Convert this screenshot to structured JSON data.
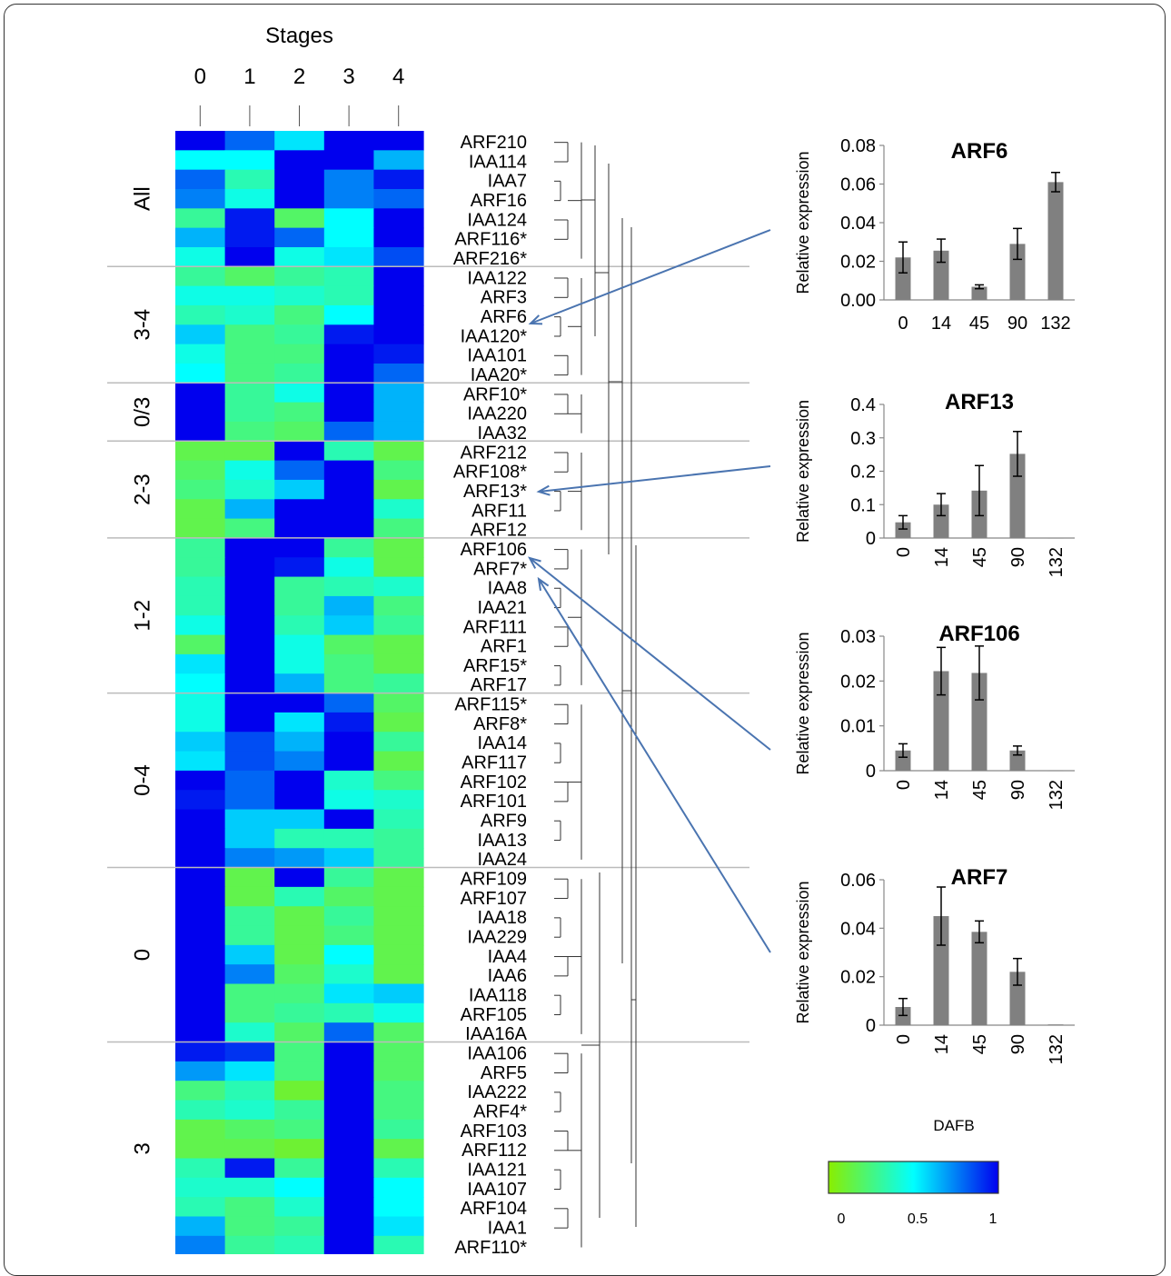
{
  "chart_data": [
    {
      "type": "heatmap",
      "title": "Stages",
      "columns": [
        "0",
        "1",
        "2",
        "3",
        "4"
      ],
      "groups": [
        {
          "label": "All",
          "rows": [
            "ARF210",
            "IAA114",
            "IAA7",
            "ARF16",
            "IAA124",
            "ARF116*",
            "ARF216*"
          ]
        },
        {
          "label": "3-4",
          "rows": [
            "IAA122",
            "ARF3",
            "ARF6",
            "IAA120*",
            "IAA101",
            "IAA20*"
          ]
        },
        {
          "label": "0/3",
          "rows": [
            "ARF10*",
            "IAA220",
            "IAA32"
          ]
        },
        {
          "label": "2-3",
          "rows": [
            "ARF212",
            "ARF108*",
            "ARF13*",
            "ARF11",
            "ARF12"
          ]
        },
        {
          "label": "1-2",
          "rows": [
            "ARF106",
            "ARF7*",
            "IAA8",
            "IAA21",
            "ARF111",
            "ARF1",
            "ARF15*",
            "ARF17"
          ]
        },
        {
          "label": "0-4",
          "rows": [
            "ARF115*",
            "ARF8*",
            "IAA14",
            "ARF117",
            "ARF102",
            "ARF101",
            "ARF9",
            "IAA13",
            "IAA24"
          ]
        },
        {
          "label": "0",
          "rows": [
            "ARF109",
            "ARF107",
            "IAA18",
            "IAA229",
            "IAA4",
            "IAA6",
            "IAA118",
            "ARF105",
            "IAA16A"
          ]
        },
        {
          "label": "3",
          "rows": [
            "IAA106",
            "ARF5",
            "IAA222",
            "ARF4*",
            "ARF103",
            "ARF112",
            "IAA121",
            "IAA107",
            "ARF104",
            "IAA1",
            "ARF110*"
          ]
        }
      ],
      "values": [
        [
          1.0,
          0.8,
          0.55,
          1.0,
          1.0
        ],
        [
          0.5,
          0.5,
          1.0,
          1.0,
          0.65
        ],
        [
          0.8,
          0.35,
          1.0,
          0.75,
          0.95
        ],
        [
          0.75,
          0.45,
          1.0,
          0.75,
          0.8
        ],
        [
          0.3,
          0.95,
          0.2,
          0.5,
          1.0
        ],
        [
          0.65,
          0.95,
          0.8,
          0.5,
          1.0
        ],
        [
          0.45,
          1.0,
          0.45,
          0.55,
          0.85
        ],
        [
          0.3,
          0.2,
          0.3,
          0.35,
          1.0
        ],
        [
          0.45,
          0.45,
          0.4,
          0.35,
          1.0
        ],
        [
          0.35,
          0.4,
          0.25,
          0.5,
          1.0
        ],
        [
          0.6,
          0.25,
          0.3,
          0.95,
          1.0
        ],
        [
          0.45,
          0.25,
          0.25,
          1.0,
          0.95
        ],
        [
          0.5,
          0.25,
          0.3,
          1.0,
          0.8
        ],
        [
          1.0,
          0.3,
          0.45,
          1.0,
          0.65
        ],
        [
          1.0,
          0.3,
          0.25,
          1.0,
          0.65
        ],
        [
          1.0,
          0.25,
          0.2,
          0.8,
          0.65
        ],
        [
          0.15,
          0.15,
          1.0,
          0.35,
          0.15
        ],
        [
          0.2,
          0.45,
          0.8,
          1.0,
          0.25
        ],
        [
          0.25,
          0.4,
          0.6,
          1.0,
          0.15
        ],
        [
          0.15,
          0.65,
          1.0,
          1.0,
          0.4
        ],
        [
          0.15,
          0.25,
          1.0,
          1.0,
          0.25
        ],
        [
          0.3,
          1.0,
          1.0,
          0.3,
          0.15
        ],
        [
          0.3,
          1.0,
          0.95,
          0.45,
          0.15
        ],
        [
          0.35,
          1.0,
          0.3,
          0.35,
          0.4
        ],
        [
          0.35,
          1.0,
          0.3,
          0.65,
          0.25
        ],
        [
          0.45,
          1.0,
          0.35,
          0.6,
          0.3
        ],
        [
          0.2,
          1.0,
          0.45,
          0.2,
          0.15
        ],
        [
          0.55,
          1.0,
          0.45,
          0.25,
          0.15
        ],
        [
          0.5,
          1.0,
          0.65,
          0.25,
          0.3
        ],
        [
          0.45,
          1.0,
          1.0,
          0.8,
          0.2
        ],
        [
          0.45,
          1.0,
          0.55,
          0.95,
          0.15
        ],
        [
          0.6,
          0.85,
          0.65,
          1.0,
          0.3
        ],
        [
          0.55,
          0.85,
          0.75,
          1.0,
          0.15
        ],
        [
          1.0,
          0.8,
          1.0,
          0.4,
          0.25
        ],
        [
          0.95,
          0.8,
          1.0,
          0.45,
          0.4
        ],
        [
          1.0,
          0.6,
          0.6,
          1.0,
          0.35
        ],
        [
          1.0,
          0.6,
          0.35,
          0.35,
          0.3
        ],
        [
          1.0,
          0.75,
          0.7,
          0.6,
          0.3
        ],
        [
          1.0,
          0.15,
          1.0,
          0.3,
          0.15
        ],
        [
          1.0,
          0.15,
          0.35,
          0.2,
          0.15
        ],
        [
          1.0,
          0.3,
          0.15,
          0.3,
          0.15
        ],
        [
          1.0,
          0.3,
          0.15,
          0.25,
          0.15
        ],
        [
          1.0,
          0.6,
          0.15,
          0.5,
          0.15
        ],
        [
          1.0,
          0.75,
          0.2,
          0.4,
          0.15
        ],
        [
          1.0,
          0.25,
          0.25,
          0.55,
          0.6
        ],
        [
          1.0,
          0.25,
          0.3,
          0.35,
          0.45
        ],
        [
          1.0,
          0.4,
          0.2,
          0.8,
          0.2
        ],
        [
          0.95,
          0.9,
          0.25,
          1.0,
          0.2
        ],
        [
          0.7,
          0.55,
          0.25,
          1.0,
          0.2
        ],
        [
          0.25,
          0.35,
          0.1,
          1.0,
          0.25
        ],
        [
          0.35,
          0.4,
          0.3,
          1.0,
          0.25
        ],
        [
          0.15,
          0.2,
          0.25,
          1.0,
          0.3
        ],
        [
          0.15,
          0.15,
          0.1,
          1.0,
          0.15
        ],
        [
          0.35,
          0.95,
          0.3,
          1.0,
          0.35
        ],
        [
          0.4,
          0.4,
          0.5,
          1.0,
          0.5
        ],
        [
          0.35,
          0.25,
          0.4,
          1.0,
          0.5
        ],
        [
          0.65,
          0.25,
          0.3,
          1.0,
          0.55
        ],
        [
          0.75,
          0.3,
          0.35,
          1.0,
          0.35
        ]
      ],
      "colorscale": {
        "min": 0,
        "mid": 0.5,
        "max": 1,
        "colors": [
          "#8aee00",
          "#00ffff",
          "#0000ee"
        ],
        "tick_labels": [
          "0",
          "0.5",
          "1"
        ]
      }
    },
    {
      "type": "bar",
      "title": "ARF6",
      "ylabel": "Relative expression",
      "categories": [
        "0",
        "14",
        "45",
        "90",
        "132"
      ],
      "values": [
        0.022,
        0.0255,
        0.0068,
        0.029,
        0.061
      ],
      "errors": [
        0.008,
        0.006,
        0.001,
        0.008,
        0.005
      ],
      "ylim": [
        0,
        0.08
      ],
      "yticks": [
        "0.00",
        "0.02",
        "0.04",
        "0.06",
        "0.08"
      ]
    },
    {
      "type": "bar",
      "title": "ARF13",
      "ylabel": "Relative expression",
      "categories": [
        "0",
        "14",
        "45",
        "90",
        "132"
      ],
      "values": [
        0.047,
        0.1,
        0.142,
        0.252,
        0
      ],
      "errors": [
        0.02,
        0.033,
        0.075,
        0.067,
        0
      ],
      "ylim": [
        0,
        0.4
      ],
      "yticks": [
        "0",
        "0.1",
        "0.2",
        "0.3",
        "0.4"
      ]
    },
    {
      "type": "bar",
      "title": "ARF106",
      "ylabel": "Relative expression",
      "categories": [
        "0",
        "14",
        "45",
        "90",
        "132"
      ],
      "values": [
        0.0045,
        0.0222,
        0.0218,
        0.0045,
        5e-05
      ],
      "errors": [
        0.0015,
        0.0053,
        0.006,
        0.001,
        0
      ],
      "ylim": [
        0,
        0.03
      ],
      "yticks": [
        "0",
        "0.01",
        "0.02",
        "0.03"
      ]
    },
    {
      "type": "bar",
      "title": "ARF7",
      "ylabel": "Relative expression",
      "xlabel": "DAFB",
      "categories": [
        "0",
        "14",
        "45",
        "90",
        "132"
      ],
      "values": [
        0.0075,
        0.045,
        0.0385,
        0.022,
        0.0003
      ],
      "errors": [
        0.0035,
        0.012,
        0.0045,
        0.0055,
        0
      ],
      "ylim": [
        0,
        0.06
      ],
      "yticks": [
        "0",
        "0.02",
        "0.04",
        "0.06"
      ]
    }
  ]
}
